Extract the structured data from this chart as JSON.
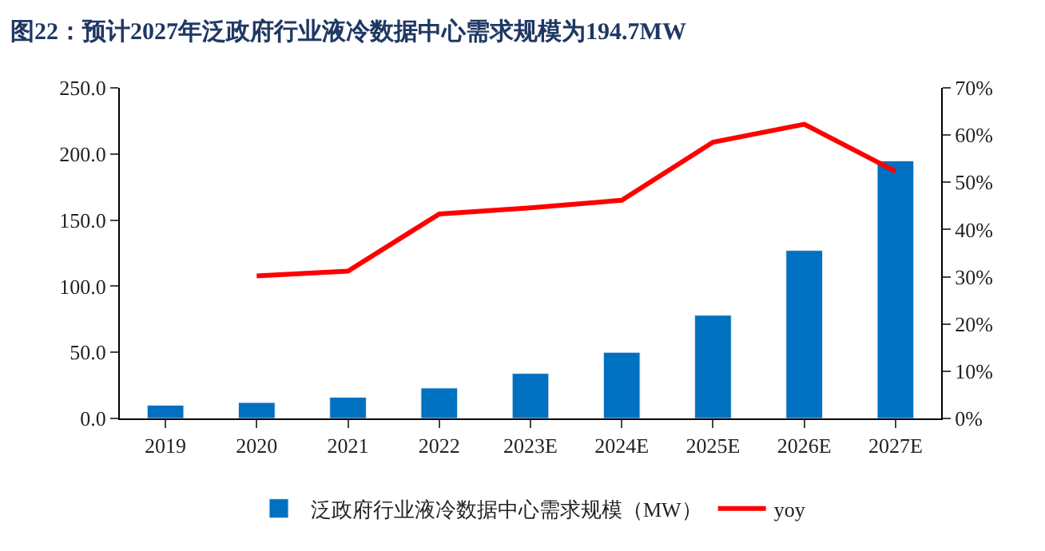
{
  "chart_data": {
    "type": "bar",
    "title": "图22：预计2027年泛政府行业液冷数据中心需求规模为194.7MW",
    "categories": [
      "2019",
      "2020",
      "2021",
      "2022",
      "2023E",
      "2024E",
      "2025E",
      "2026E",
      "2027E"
    ],
    "series": [
      {
        "name": "泛政府行业液冷数据中心需求规模（MW）",
        "color": "#0070c0",
        "values": [
          10,
          12,
          16,
          23,
          34,
          50,
          78,
          127,
          194.7
        ]
      },
      {
        "name": "yoy",
        "type": "line",
        "axis": "y2",
        "color": "#ff0000",
        "values": [
          null,
          30.2,
          31.2,
          43.3,
          44.6,
          46.2,
          58.5,
          62.3,
          52.3
        ]
      }
    ],
    "ylim": [
      0,
      250
    ],
    "yticks": [
      {
        "value": 0,
        "label": "0.0"
      },
      {
        "value": 50,
        "label": "50.0"
      },
      {
        "value": 100,
        "label": "100.0"
      },
      {
        "value": 150,
        "label": "150.0"
      },
      {
        "value": 200,
        "label": "200.0"
      },
      {
        "value": 250,
        "label": "250.0"
      }
    ],
    "y2lim": [
      0,
      70
    ],
    "y2ticks": [
      {
        "value": 0,
        "label": "0%"
      },
      {
        "value": 10,
        "label": "10%"
      },
      {
        "value": 20,
        "label": "20%"
      },
      {
        "value": 30,
        "label": "30%"
      },
      {
        "value": 40,
        "label": "40%"
      },
      {
        "value": 50,
        "label": "50%"
      },
      {
        "value": 60,
        "label": "60%"
      },
      {
        "value": 70,
        "label": "70%"
      }
    ],
    "legend": "bottom",
    "marker": "none",
    "line_style": "solid"
  }
}
